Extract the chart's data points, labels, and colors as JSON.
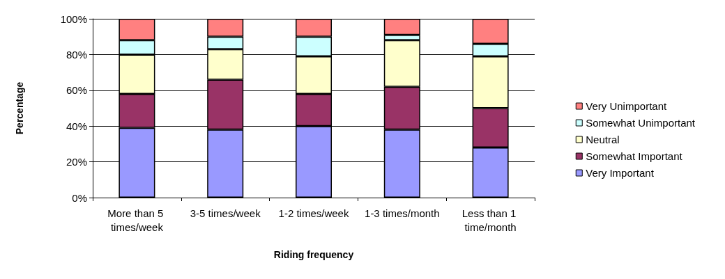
{
  "chart_data": {
    "type": "bar",
    "stacked": true,
    "xlabel": "Riding frequency",
    "ylabel": "Percentage",
    "categories": [
      "More than 5 times/week",
      "3-5 times/week",
      "1-2 times/week",
      "1-3 times/month",
      "Less than 1 time/month"
    ],
    "series": [
      {
        "name": "Very Important",
        "color": "#9999ff",
        "values": [
          39,
          38,
          40,
          38,
          28
        ]
      },
      {
        "name": "Somewhat Important",
        "color": "#993366",
        "values": [
          19,
          28,
          18,
          24,
          22
        ]
      },
      {
        "name": "Neutral",
        "color": "#ffffcc",
        "values": [
          22,
          17,
          21,
          26,
          29
        ]
      },
      {
        "name": "Somewhat Unimportant",
        "color": "#ccffff",
        "values": [
          8,
          7,
          11,
          3,
          7
        ]
      },
      {
        "name": "Very Unimportant",
        "color": "#ff8080",
        "values": [
          12,
          10,
          10,
          9,
          14
        ]
      }
    ],
    "ylim": [
      0,
      100
    ],
    "yticks": [
      {
        "value": 0,
        "label": "0%"
      },
      {
        "value": 20,
        "label": "20%"
      },
      {
        "value": 40,
        "label": "40%"
      },
      {
        "value": 60,
        "label": "60%"
      },
      {
        "value": 80,
        "label": "80%"
      },
      {
        "value": 100,
        "label": "100%"
      }
    ],
    "grid": "y",
    "legend": "right"
  }
}
